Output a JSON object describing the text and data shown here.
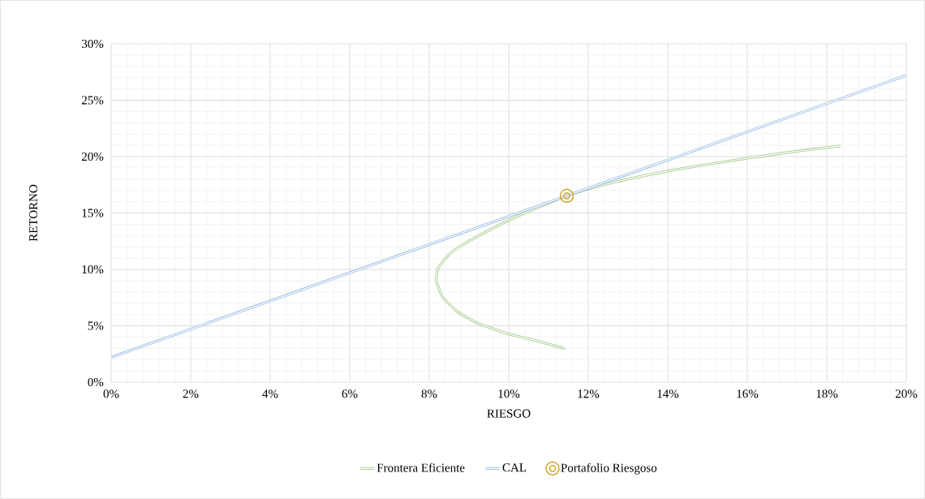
{
  "chart_data": {
    "type": "line",
    "xlabel": "RIESGO",
    "ylabel": "RETORNO",
    "series": [
      {
        "name": "Frontera Eficiente",
        "color": "#9cc47e",
        "x": [
          11.41,
          10.68,
          9.95,
          9.22,
          8.71,
          8.34,
          8.18,
          8.23,
          8.49,
          8.85,
          9.44,
          10.02,
          10.68,
          11.46,
          12.5,
          13.96,
          15.42,
          16.88,
          18.34
        ],
        "values": [
          2.99,
          3.69,
          4.33,
          5.23,
          6.26,
          7.55,
          8.97,
          10.13,
          11.29,
          12.19,
          13.35,
          14.38,
          15.41,
          16.52,
          17.6,
          18.69,
          19.54,
          20.31,
          20.95
        ]
      },
      {
        "name": "CAL",
        "color": "#8db4e2",
        "x": [
          0,
          20
        ],
        "values": [
          2.2,
          27.2
        ]
      },
      {
        "name": "Portafolio Riesgoso",
        "type": "scatter",
        "color": "#d4a52c",
        "x": [
          11.46
        ],
        "values": [
          16.52
        ]
      }
    ],
    "xlim": [
      0,
      20
    ],
    "ylim": [
      0,
      30
    ],
    "xticks": [
      {
        "value": 0,
        "label": "0%"
      },
      {
        "value": 2,
        "label": "2%"
      },
      {
        "value": 4,
        "label": "4%"
      },
      {
        "value": 6,
        "label": "6%"
      },
      {
        "value": 8,
        "label": "8%"
      },
      {
        "value": 10,
        "label": "10%"
      },
      {
        "value": 12,
        "label": "12%"
      },
      {
        "value": 14,
        "label": "14%"
      },
      {
        "value": 16,
        "label": "16%"
      },
      {
        "value": 18,
        "label": "18%"
      },
      {
        "value": 20,
        "label": "20%"
      }
    ],
    "yticks": [
      {
        "value": 0,
        "label": "0%"
      },
      {
        "value": 5,
        "label": "5%"
      },
      {
        "value": 10,
        "label": "10%"
      },
      {
        "value": 15,
        "label": "15%"
      },
      {
        "value": 20,
        "label": "20%"
      },
      {
        "value": 25,
        "label": "25%"
      },
      {
        "value": 30,
        "label": "30%"
      }
    ],
    "grid": true,
    "legend": "bottom"
  }
}
